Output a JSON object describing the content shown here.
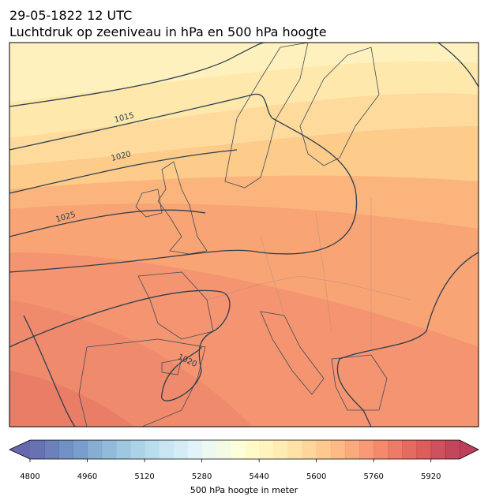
{
  "title": {
    "date": "29-05-1822 12 UTC",
    "subtitle": "Luchtdruk op zeeniveau in hPa en 500 hPa hoogte"
  },
  "contour_labels": [
    "1015",
    "1020",
    "1025",
    "1020"
  ],
  "colorbar": {
    "label": "500 hPa hoogte in meter",
    "range": [
      4800,
      6000
    ],
    "step": 40,
    "ticks": [
      4800,
      4960,
      5120,
      5280,
      5440,
      5600,
      5760,
      5920
    ]
  }
}
